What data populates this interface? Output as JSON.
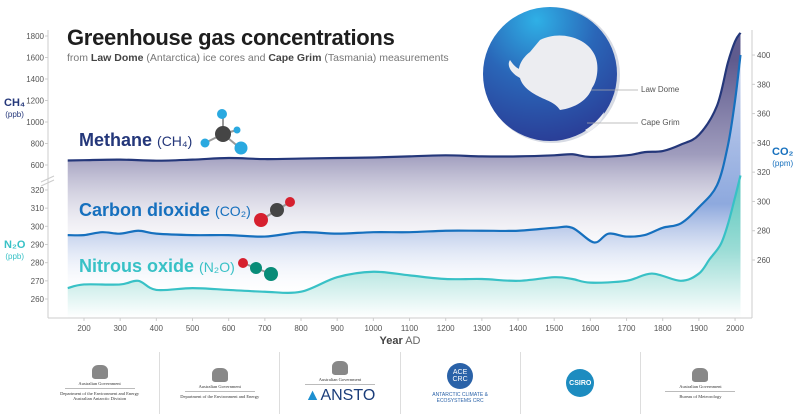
{
  "header": {
    "title": "Greenhouse gas concentrations",
    "subtitle_parts": [
      "from ",
      "Law Dome",
      " (Antarctica) ice cores and ",
      "Cape Grim",
      " (Tasmania) measurements"
    ]
  },
  "globe": {
    "labels": [
      "Law Dome",
      "Cape Grim"
    ]
  },
  "units": {
    "ch4": {
      "formula": "CH₄",
      "unit": "(ppb)"
    },
    "n2o": {
      "formula": "N₂O",
      "unit": "(ppb)"
    },
    "co2": {
      "formula": "CO₂",
      "unit": "(ppm)"
    }
  },
  "labels": {
    "methane": {
      "name": "Methane",
      "formula": "(CH₄)"
    },
    "co2": {
      "name": "Carbon dioxide",
      "formula": "(CO₂)"
    },
    "n2o": {
      "name": "Nitrous oxide",
      "formula": "(N₂O)"
    }
  },
  "xaxis": {
    "label_bold": "Year",
    "label_rest": " AD"
  },
  "colors": {
    "methane": "#24377a",
    "co2": "#1670be",
    "n2o": "#38c1c6"
  },
  "logos": [
    {
      "lines": [
        "Australian Government",
        "Department of the Environment and Energy",
        "Australian Antarctic Division"
      ]
    },
    {
      "lines": [
        "Australian Government",
        "Department of the Environment and Energy"
      ]
    },
    {
      "lines": [
        "Australian Government",
        "ANSTO"
      ]
    },
    {
      "lines": [
        "ACE CRC",
        "ANTARCTIC CLIMATE & ECOSYSTEMS CRC"
      ]
    },
    {
      "lines": [
        "CSIRO"
      ]
    },
    {
      "lines": [
        "Australian Government",
        "Bureau of Meteorology"
      ]
    }
  ],
  "chart_data": {
    "type": "area",
    "title": "Greenhouse gas concentrations",
    "xlabel": "Year AD",
    "x_ticks": [
      200,
      300,
      400,
      500,
      600,
      700,
      800,
      900,
      1000,
      1100,
      1200,
      1300,
      1400,
      1500,
      1600,
      1700,
      1800,
      1900,
      2000
    ],
    "axes": {
      "ch4": {
        "label": "CH₄ (ppb)",
        "side": "left-upper",
        "ticks": [
          600,
          800,
          1000,
          1200,
          1400,
          1600,
          1800
        ]
      },
      "n2o": {
        "label": "N₂O (ppb)",
        "side": "left-lower",
        "ticks": [
          260,
          270,
          280,
          290,
          300,
          310,
          320
        ]
      },
      "co2": {
        "label": "CO₂ (ppm)",
        "side": "right",
        "ticks": [
          260,
          280,
          300,
          320,
          340,
          360,
          380,
          400
        ]
      }
    },
    "series": [
      {
        "name": "Methane (CH₄)",
        "axis": "ch4",
        "x": [
          155,
          200,
          300,
          400,
          500,
          600,
          700,
          800,
          900,
          1000,
          1100,
          1200,
          1300,
          1400,
          1500,
          1550,
          1600,
          1700,
          1750,
          1800,
          1850,
          1900,
          1950,
          1980,
          2000,
          2015
        ],
        "y": [
          642,
          645,
          650,
          640,
          650,
          665,
          655,
          660,
          665,
          670,
          680,
          690,
          680,
          680,
          690,
          700,
          675,
          690,
          720,
          730,
          790,
          880,
          1150,
          1550,
          1750,
          1830
        ]
      },
      {
        "name": "Carbon dioxide (CO₂)",
        "axis": "co2",
        "x": [
          155,
          200,
          250,
          300,
          350,
          400,
          500,
          600,
          700,
          800,
          900,
          1000,
          1100,
          1200,
          1300,
          1400,
          1500,
          1550,
          1610,
          1650,
          1700,
          1750,
          1800,
          1850,
          1900,
          1950,
          1980,
          2000,
          2015
        ],
        "y": [
          277,
          277,
          279,
          278,
          280,
          278,
          277,
          277,
          276,
          279,
          278,
          279,
          279,
          280,
          280,
          280,
          282,
          282,
          272,
          278,
          276,
          277,
          282,
          285,
          296,
          311,
          338,
          369,
          400
        ]
      },
      {
        "name": "Nitrous oxide (N₂O)",
        "axis": "n2o",
        "x": [
          155,
          200,
          300,
          350,
          400,
          500,
          600,
          700,
          800,
          900,
          1000,
          1100,
          1200,
          1300,
          1400,
          1500,
          1550,
          1600,
          1700,
          1770,
          1850,
          1900,
          1930,
          1960,
          1980,
          2000,
          2015
        ],
        "y": [
          266,
          268,
          268,
          270,
          265,
          266,
          265,
          264,
          264,
          272,
          275,
          273,
          271,
          271,
          270,
          272,
          271,
          269,
          270,
          274,
          270,
          274,
          282,
          290,
          301,
          316,
          328
        ]
      }
    ],
    "grid": false
  }
}
